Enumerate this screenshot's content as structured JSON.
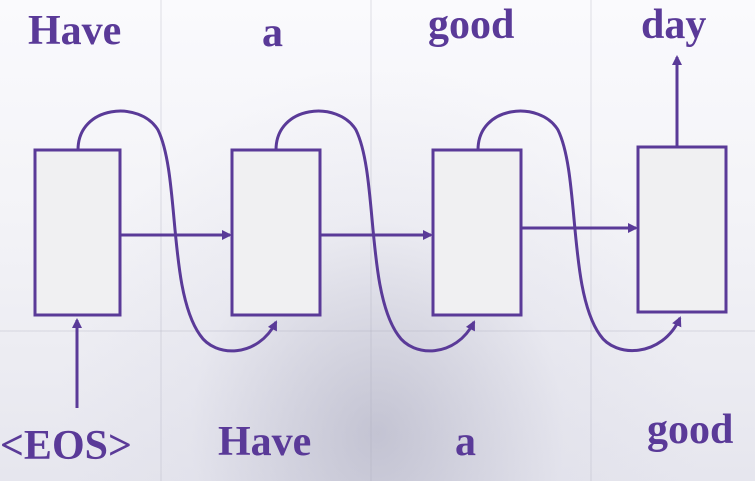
{
  "colors": {
    "accent": "#5a3a98",
    "cell_fill": "#f0f0f2"
  },
  "outputs": [
    "Have",
    "a",
    "good",
    "day"
  ],
  "inputs": [
    "<EOS>",
    "Have",
    "a",
    "good"
  ]
}
